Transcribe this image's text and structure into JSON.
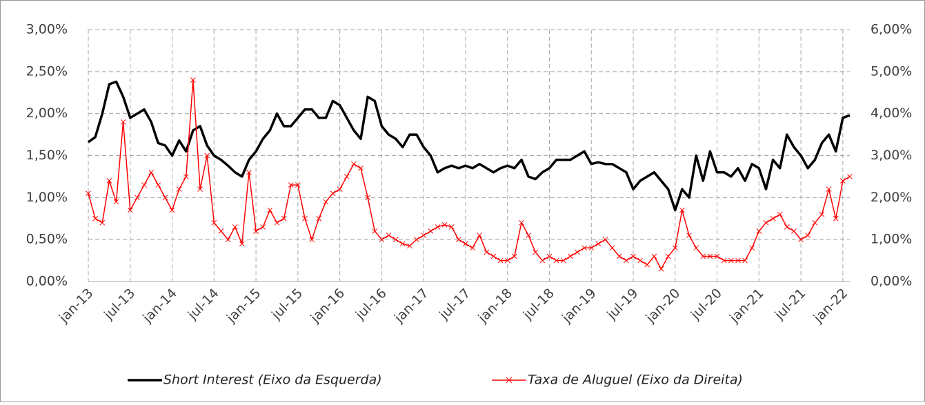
{
  "chart_data": {
    "type": "line",
    "categories": [
      "jan-13",
      null,
      null,
      null,
      null,
      null,
      "jul-13",
      null,
      null,
      null,
      null,
      null,
      "jan-14",
      null,
      null,
      null,
      null,
      null,
      "jul-14",
      null,
      null,
      null,
      null,
      null,
      "jan-15",
      null,
      null,
      null,
      null,
      null,
      "jul-15",
      null,
      null,
      null,
      null,
      null,
      "jan-16",
      null,
      null,
      null,
      null,
      null,
      "jul-16",
      null,
      null,
      null,
      null,
      null,
      "jan-17",
      null,
      null,
      null,
      null,
      null,
      "jul-17",
      null,
      null,
      null,
      null,
      null,
      "jan-18",
      null,
      null,
      null,
      null,
      null,
      "jul-18",
      null,
      null,
      null,
      null,
      null,
      "jan-19",
      null,
      null,
      null,
      null,
      null,
      "jul-19",
      null,
      null,
      null,
      null,
      null,
      "jan-20",
      null,
      null,
      null,
      null,
      null,
      "jul-20",
      null,
      null,
      null,
      null,
      null,
      "jan-21",
      null,
      null,
      null,
      null,
      null,
      "jul-21",
      null,
      null,
      null,
      null,
      null,
      "jan-22",
      null
    ],
    "series": [
      {
        "name": "Short Interest (Eixo da Esquerda)",
        "color": "#000000",
        "axis": "y",
        "values": [
          1.66,
          1.72,
          2.0,
          2.35,
          2.38,
          2.2,
          1.95,
          2.0,
          2.05,
          1.9,
          1.65,
          1.62,
          1.5,
          1.68,
          1.55,
          1.8,
          1.85,
          1.62,
          1.5,
          1.45,
          1.38,
          1.3,
          1.25,
          1.45,
          1.55,
          1.7,
          1.8,
          2.0,
          1.85,
          1.85,
          1.95,
          2.05,
          2.05,
          1.95,
          1.95,
          2.15,
          2.1,
          1.95,
          1.8,
          1.7,
          2.2,
          2.15,
          1.85,
          1.75,
          1.7,
          1.6,
          1.75,
          1.75,
          1.6,
          1.5,
          1.3,
          1.35,
          1.38,
          1.35,
          1.38,
          1.35,
          1.4,
          1.35,
          1.3,
          1.35,
          1.38,
          1.35,
          1.45,
          1.25,
          1.22,
          1.3,
          1.35,
          1.45,
          1.45,
          1.45,
          1.5,
          1.55,
          1.4,
          1.42,
          1.4,
          1.4,
          1.35,
          1.3,
          1.1,
          1.2,
          1.25,
          1.3,
          1.2,
          1.1,
          0.85,
          1.1,
          1.0,
          1.5,
          1.2,
          1.55,
          1.3,
          1.3,
          1.25,
          1.35,
          1.2,
          1.4,
          1.35,
          1.1,
          1.45,
          1.35,
          1.75,
          1.6,
          1.5,
          1.35,
          1.45,
          1.65,
          1.75,
          1.55,
          1.95,
          1.98
        ]
      },
      {
        "name": "Taxa de Aluguel (Eixo da Direita)",
        "color": "#ff0000",
        "axis": "y2",
        "values": [
          2.1,
          1.5,
          1.4,
          2.4,
          1.9,
          3.8,
          1.7,
          2.0,
          2.3,
          2.6,
          2.3,
          2.0,
          1.7,
          2.2,
          2.5,
          4.8,
          2.2,
          3.0,
          1.4,
          1.2,
          1.0,
          1.3,
          0.9,
          2.6,
          1.2,
          1.3,
          1.7,
          1.4,
          1.5,
          2.3,
          2.3,
          1.5,
          1.0,
          1.5,
          1.9,
          2.1,
          2.2,
          2.5,
          2.8,
          2.7,
          2.0,
          1.2,
          1.0,
          1.1,
          1.0,
          0.9,
          0.85,
          1.0,
          1.1,
          1.2,
          1.3,
          1.35,
          1.3,
          1.0,
          0.9,
          0.8,
          1.1,
          0.7,
          0.6,
          0.5,
          0.5,
          0.6,
          1.4,
          1.1,
          0.7,
          0.5,
          0.6,
          0.5,
          0.5,
          0.6,
          0.7,
          0.8,
          0.8,
          0.9,
          1.0,
          0.8,
          0.6,
          0.5,
          0.6,
          0.5,
          0.4,
          0.6,
          0.3,
          0.6,
          0.8,
          1.7,
          1.1,
          0.8,
          0.6,
          0.6,
          0.6,
          0.5,
          0.5,
          0.5,
          0.5,
          0.8,
          1.2,
          1.4,
          1.5,
          1.6,
          1.3,
          1.2,
          1.0,
          1.1,
          1.4,
          1.6,
          2.2,
          1.5,
          2.4,
          2.5
        ]
      }
    ],
    "ylim": [
      0,
      3
    ],
    "yticks": [
      {
        "value": 0,
        "label": "0,00%"
      },
      {
        "value": 0.5,
        "label": "0,50%"
      },
      {
        "value": 1,
        "label": "1,00%"
      },
      {
        "value": 1.5,
        "label": "1,50%"
      },
      {
        "value": 2,
        "label": "2,00%"
      },
      {
        "value": 2.5,
        "label": "2,50%"
      },
      {
        "value": 3,
        "label": "3,00%"
      }
    ],
    "y2lim": [
      0,
      6
    ],
    "y2ticks": [
      {
        "value": 0,
        "label": "0,00%"
      },
      {
        "value": 1,
        "label": "1,00%"
      },
      {
        "value": 2,
        "label": "2,00%"
      },
      {
        "value": 3,
        "label": "3,00%"
      },
      {
        "value": 4,
        "label": "4,00%"
      },
      {
        "value": 5,
        "label": "5,00%"
      },
      {
        "value": 6,
        "label": "6,00%"
      }
    ],
    "grid": true,
    "legend": "bottom"
  }
}
